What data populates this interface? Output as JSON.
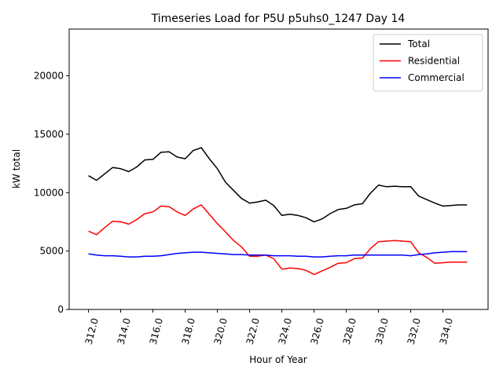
{
  "chart_data": {
    "type": "line",
    "title": "Timeseries Load for P5U p5uhs0_1247  Day 14",
    "xlabel": "Hour of Year",
    "ylabel": "kW total",
    "xlim": [
      310.8,
      336.8
    ],
    "ylim": [
      0,
      24000
    ],
    "xticks": [
      312,
      314,
      316,
      318,
      320,
      322,
      324,
      326,
      328,
      330,
      332,
      334
    ],
    "xtick_labels": [
      "312.0",
      "314.0",
      "316.0",
      "318.0",
      "320.0",
      "322.0",
      "324.0",
      "326.0",
      "328.0",
      "330.0",
      "332.0",
      "334.0"
    ],
    "yticks": [
      0,
      5000,
      10000,
      15000,
      20000
    ],
    "ytick_labels": [
      "0",
      "5000",
      "10000",
      "15000",
      "20000"
    ],
    "legend_position": "top-right",
    "x": [
      312.0,
      312.5,
      313.0,
      313.5,
      314.0,
      314.5,
      315.0,
      315.5,
      316.0,
      316.5,
      317.0,
      317.5,
      318.0,
      318.5,
      319.0,
      319.5,
      320.0,
      320.5,
      321.0,
      321.5,
      322.0,
      322.5,
      323.0,
      323.5,
      324.0,
      324.5,
      325.0,
      325.5,
      326.0,
      326.5,
      327.0,
      327.5,
      328.0,
      328.5,
      329.0,
      329.5,
      330.0,
      330.5,
      331.0,
      331.5,
      332.0,
      332.5,
      333.0,
      333.5,
      334.0,
      334.5,
      335.0,
      335.5
    ],
    "series": [
      {
        "name": "Total",
        "color": "#000000",
        "values": [
          11450,
          11050,
          11600,
          12150,
          12050,
          11800,
          12200,
          12800,
          12850,
          13450,
          13500,
          13050,
          12900,
          13600,
          13850,
          12900,
          12050,
          10900,
          10200,
          9500,
          9100,
          9200,
          9350,
          8900,
          8050,
          8150,
          8050,
          7850,
          7500,
          7750,
          8200,
          8550,
          8650,
          8950,
          9050,
          9950,
          10650,
          10500,
          10550,
          10500,
          10500,
          9700,
          9400,
          9100,
          8850,
          8900,
          8950,
          8950
        ]
      },
      {
        "name": "Residential",
        "color": "#ff0000",
        "values": [
          6700,
          6400,
          7000,
          7550,
          7500,
          7300,
          7700,
          8200,
          8350,
          8850,
          8800,
          8350,
          8050,
          8600,
          8950,
          8150,
          7350,
          6650,
          5900,
          5350,
          4550,
          4550,
          4650,
          4350,
          3450,
          3550,
          3500,
          3350,
          3000,
          3300,
          3600,
          3950,
          4000,
          4350,
          4400,
          5200,
          5800,
          5850,
          5900,
          5850,
          5800,
          4850,
          4450,
          3950,
          4000,
          4050,
          4050,
          4050
        ]
      },
      {
        "name": "Commercial",
        "color": "#0000ff",
        "values": [
          4750,
          4650,
          4600,
          4600,
          4550,
          4500,
          4500,
          4550,
          4550,
          4600,
          4700,
          4800,
          4850,
          4900,
          4900,
          4850,
          4800,
          4750,
          4700,
          4700,
          4650,
          4650,
          4650,
          4600,
          4600,
          4600,
          4550,
          4550,
          4500,
          4500,
          4550,
          4600,
          4600,
          4650,
          4650,
          4650,
          4650,
          4650,
          4650,
          4650,
          4600,
          4700,
          4750,
          4850,
          4900,
          4950,
          4950,
          4950
        ]
      }
    ]
  }
}
